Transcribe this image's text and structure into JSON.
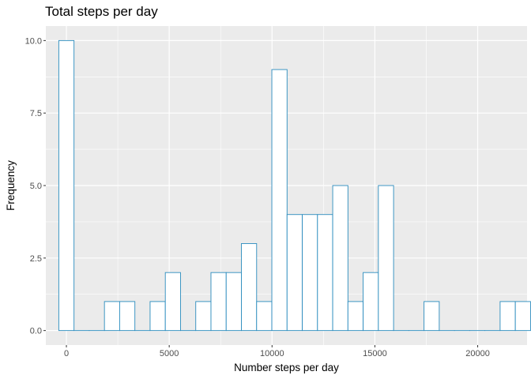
{
  "chart_data": {
    "type": "bar",
    "title": "Total steps per day",
    "xlabel": "Number steps per day",
    "ylabel": "Frequency",
    "xlim": [
      -1000,
      22400
    ],
    "ylim": [
      -0.5,
      10.5
    ],
    "x_ticks": [
      0,
      5000,
      10000,
      15000,
      20000
    ],
    "x_tick_labels": [
      "0",
      "5000",
      "10000",
      "15000",
      "20000"
    ],
    "y_ticks": [
      0,
      2.5,
      5,
      7.5,
      10
    ],
    "y_tick_labels": [
      "0.0",
      "2.5",
      "5.0",
      "7.5",
      "10.0"
    ],
    "bin_width": 740,
    "bin_start": -370,
    "counts": [
      10,
      0,
      0,
      1,
      1,
      0,
      1,
      2,
      0,
      1,
      2,
      2,
      3,
      1,
      9,
      4,
      4,
      4,
      5,
      1,
      2,
      5,
      0,
      0,
      1,
      0,
      0,
      0,
      0,
      1,
      1
    ],
    "grid": true,
    "legend": "none",
    "colors": {
      "bar_outline": "#2b8cbe",
      "bar_fill": "#ffffff",
      "panel": "#ebebeb",
      "grid_major": "#ffffff"
    }
  }
}
